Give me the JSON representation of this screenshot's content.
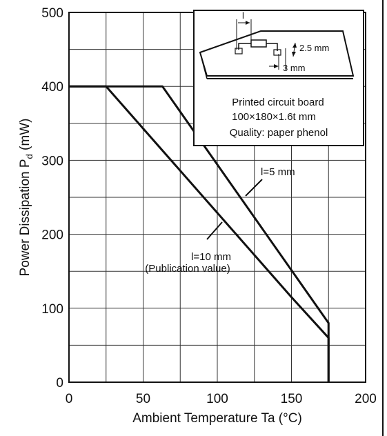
{
  "chart_data": {
    "type": "line",
    "title": "",
    "xlabel": "Ambient Temperature Ta (°C)",
    "ylabel": "Power Dissipation P",
    "ylabel_sub": "d",
    "ylabel_unit": "  (mW)",
    "xlim": [
      0,
      200
    ],
    "ylim": [
      0,
      500
    ],
    "x_ticks": [
      "0",
      "50",
      "100",
      "150",
      "200"
    ],
    "y_ticks": [
      "0",
      "100",
      "200",
      "300",
      "400",
      "500"
    ],
    "x_tick_values": [
      0,
      50,
      100,
      150,
      200
    ],
    "y_tick_values": [
      0,
      100,
      200,
      300,
      400,
      500
    ],
    "grid": true,
    "series": [
      {
        "name": "l=5 mm",
        "points": [
          [
            0,
            400
          ],
          [
            63,
            400
          ],
          [
            175,
            80
          ],
          [
            175,
            0
          ]
        ]
      },
      {
        "name": "l=10 mm",
        "points": [
          [
            0,
            400
          ],
          [
            25,
            400
          ],
          [
            150,
            115
          ],
          [
            175,
            60
          ],
          [
            175,
            0
          ]
        ]
      }
    ],
    "annotations": {
      "l5": "l=5 mm",
      "l10_line1": "l=10 mm",
      "l10_line2": "(Publication value)"
    },
    "inset": {
      "dim_l": "l",
      "dim_25": "2.5 mm",
      "dim_3": "3 mm",
      "line1": "Printed circuit board",
      "line2": "100×180×1.6t mm",
      "line3": "Quality: paper phenol"
    }
  }
}
